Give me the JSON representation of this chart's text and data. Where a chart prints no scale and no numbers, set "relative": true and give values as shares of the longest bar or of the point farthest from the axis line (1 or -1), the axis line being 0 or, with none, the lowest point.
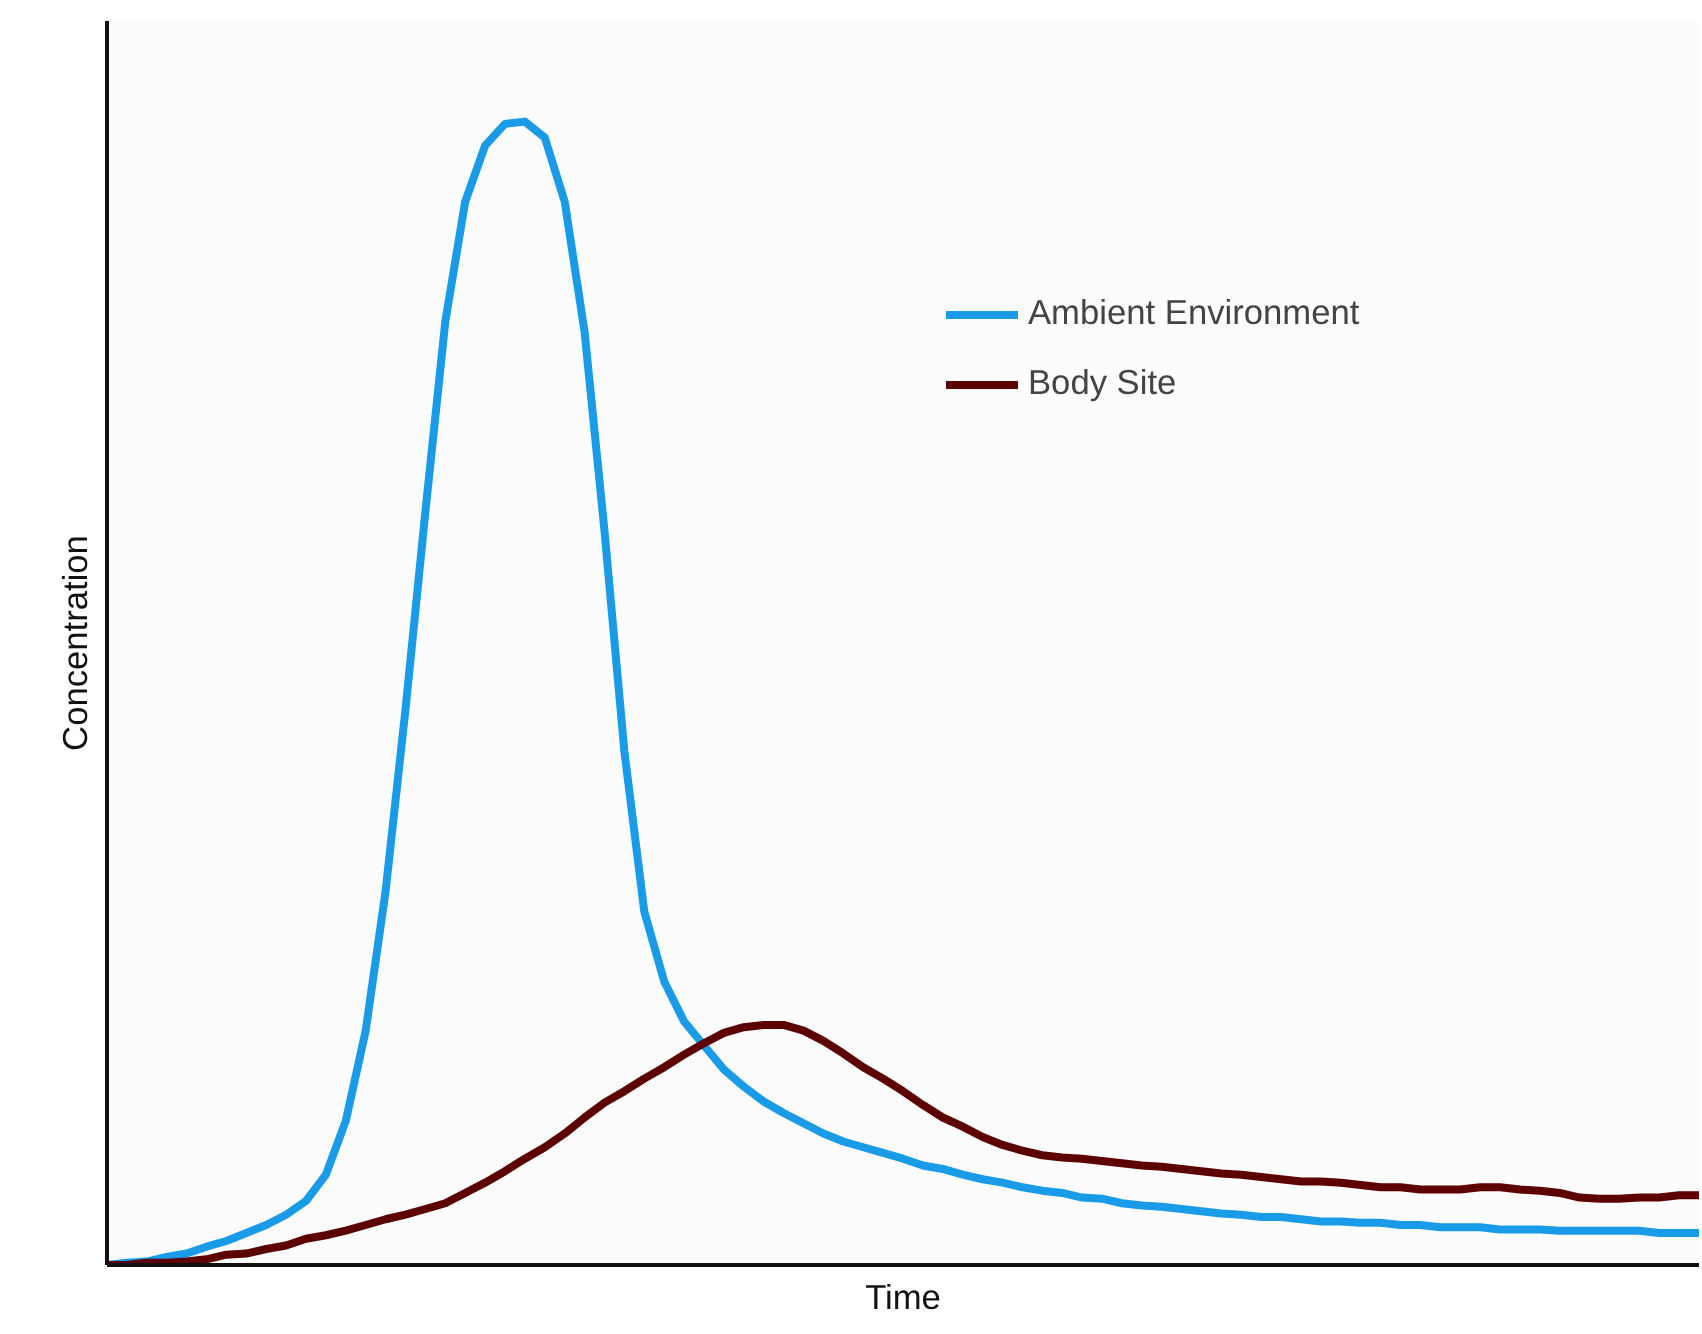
{
  "chart_data": {
    "type": "line",
    "relative": true,
    "xlabel": "Time",
    "ylabel": "Concentration",
    "categories": [
      null,
      null,
      null,
      null,
      null,
      null,
      null,
      null,
      null,
      null,
      null,
      null,
      null,
      null,
      null,
      null,
      null,
      null,
      null,
      null,
      null,
      null,
      null,
      null,
      null,
      null,
      null,
      null,
      null,
      null,
      null,
      null,
      null,
      null,
      null,
      null,
      null,
      null,
      null,
      null,
      null,
      null,
      null,
      null,
      null,
      null,
      null,
      null,
      null,
      null,
      null,
      null,
      null,
      null,
      null,
      null,
      null,
      null,
      null,
      null,
      null,
      null,
      null,
      null,
      null,
      null,
      null,
      null,
      null,
      null,
      null,
      null,
      null,
      null,
      null,
      null,
      null,
      null,
      null,
      null,
      null
    ],
    "series": [
      {
        "name": "Ambient Environment",
        "color": "#1a9be8",
        "values": [
          0,
          0.002,
          0.003,
          0.007,
          0.01,
          0.016,
          0.021,
          0.028,
          0.035,
          0.044,
          0.056,
          0.079,
          0.126,
          0.205,
          0.327,
          0.486,
          0.659,
          0.825,
          0.93,
          0.979,
          0.998,
          1,
          0.986,
          0.93,
          0.816,
          0.642,
          0.449,
          0.309,
          0.248,
          0.213,
          0.192,
          0.171,
          0.156,
          0.143,
          0.133,
          0.124,
          0.115,
          0.108,
          0.103,
          0.098,
          0.093,
          0.087,
          0.084,
          0.079,
          0.075,
          0.072,
          0.068,
          0.065,
          0.063,
          0.059,
          0.058,
          0.054,
          0.052,
          0.051,
          0.049,
          0.047,
          0.045,
          0.044,
          0.042,
          0.042,
          0.04,
          0.038,
          0.038,
          0.037,
          0.037,
          0.035,
          0.035,
          0.033,
          0.033,
          0.033,
          0.031,
          0.031,
          0.031,
          0.03,
          0.03,
          0.03,
          0.03,
          0.03,
          0.028,
          0.028,
          0.028
        ]
      },
      {
        "name": "Body Site",
        "color": "#5c0000",
        "values": [
          0,
          0,
          0.002,
          0.002,
          0.003,
          0.005,
          0.009,
          0.01,
          0.014,
          0.017,
          0.023,
          0.026,
          0.03,
          0.035,
          0.04,
          0.044,
          0.049,
          0.054,
          0.063,
          0.072,
          0.082,
          0.093,
          0.103,
          0.115,
          0.129,
          0.142,
          0.152,
          0.163,
          0.173,
          0.184,
          0.194,
          0.203,
          0.208,
          0.21,
          0.21,
          0.205,
          0.196,
          0.185,
          0.173,
          0.163,
          0.152,
          0.14,
          0.129,
          0.121,
          0.112,
          0.105,
          0.1,
          0.096,
          0.094,
          0.093,
          0.091,
          0.089,
          0.087,
          0.086,
          0.084,
          0.082,
          0.08,
          0.079,
          0.077,
          0.075,
          0.073,
          0.073,
          0.072,
          0.07,
          0.068,
          0.068,
          0.066,
          0.066,
          0.066,
          0.068,
          0.068,
          0.066,
          0.065,
          0.063,
          0.059,
          0.058,
          0.058,
          0.059,
          0.059,
          0.061,
          0.061
        ]
      }
    ],
    "legend": "top right",
    "marker": "none",
    "line_style": "solid"
  }
}
